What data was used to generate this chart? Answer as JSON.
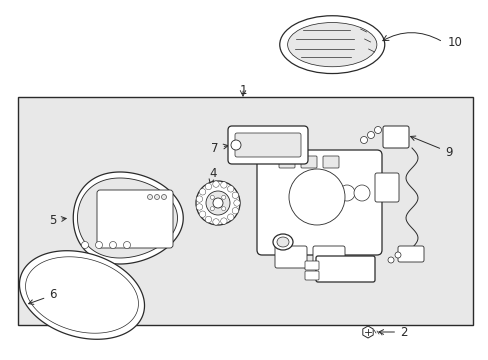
{
  "bg_outer": "#ffffff",
  "bg_box": "#e8e8e8",
  "lc": "#2a2a2a",
  "white": "#ffffff",
  "lw": 0.9,
  "fs": 8.5
}
